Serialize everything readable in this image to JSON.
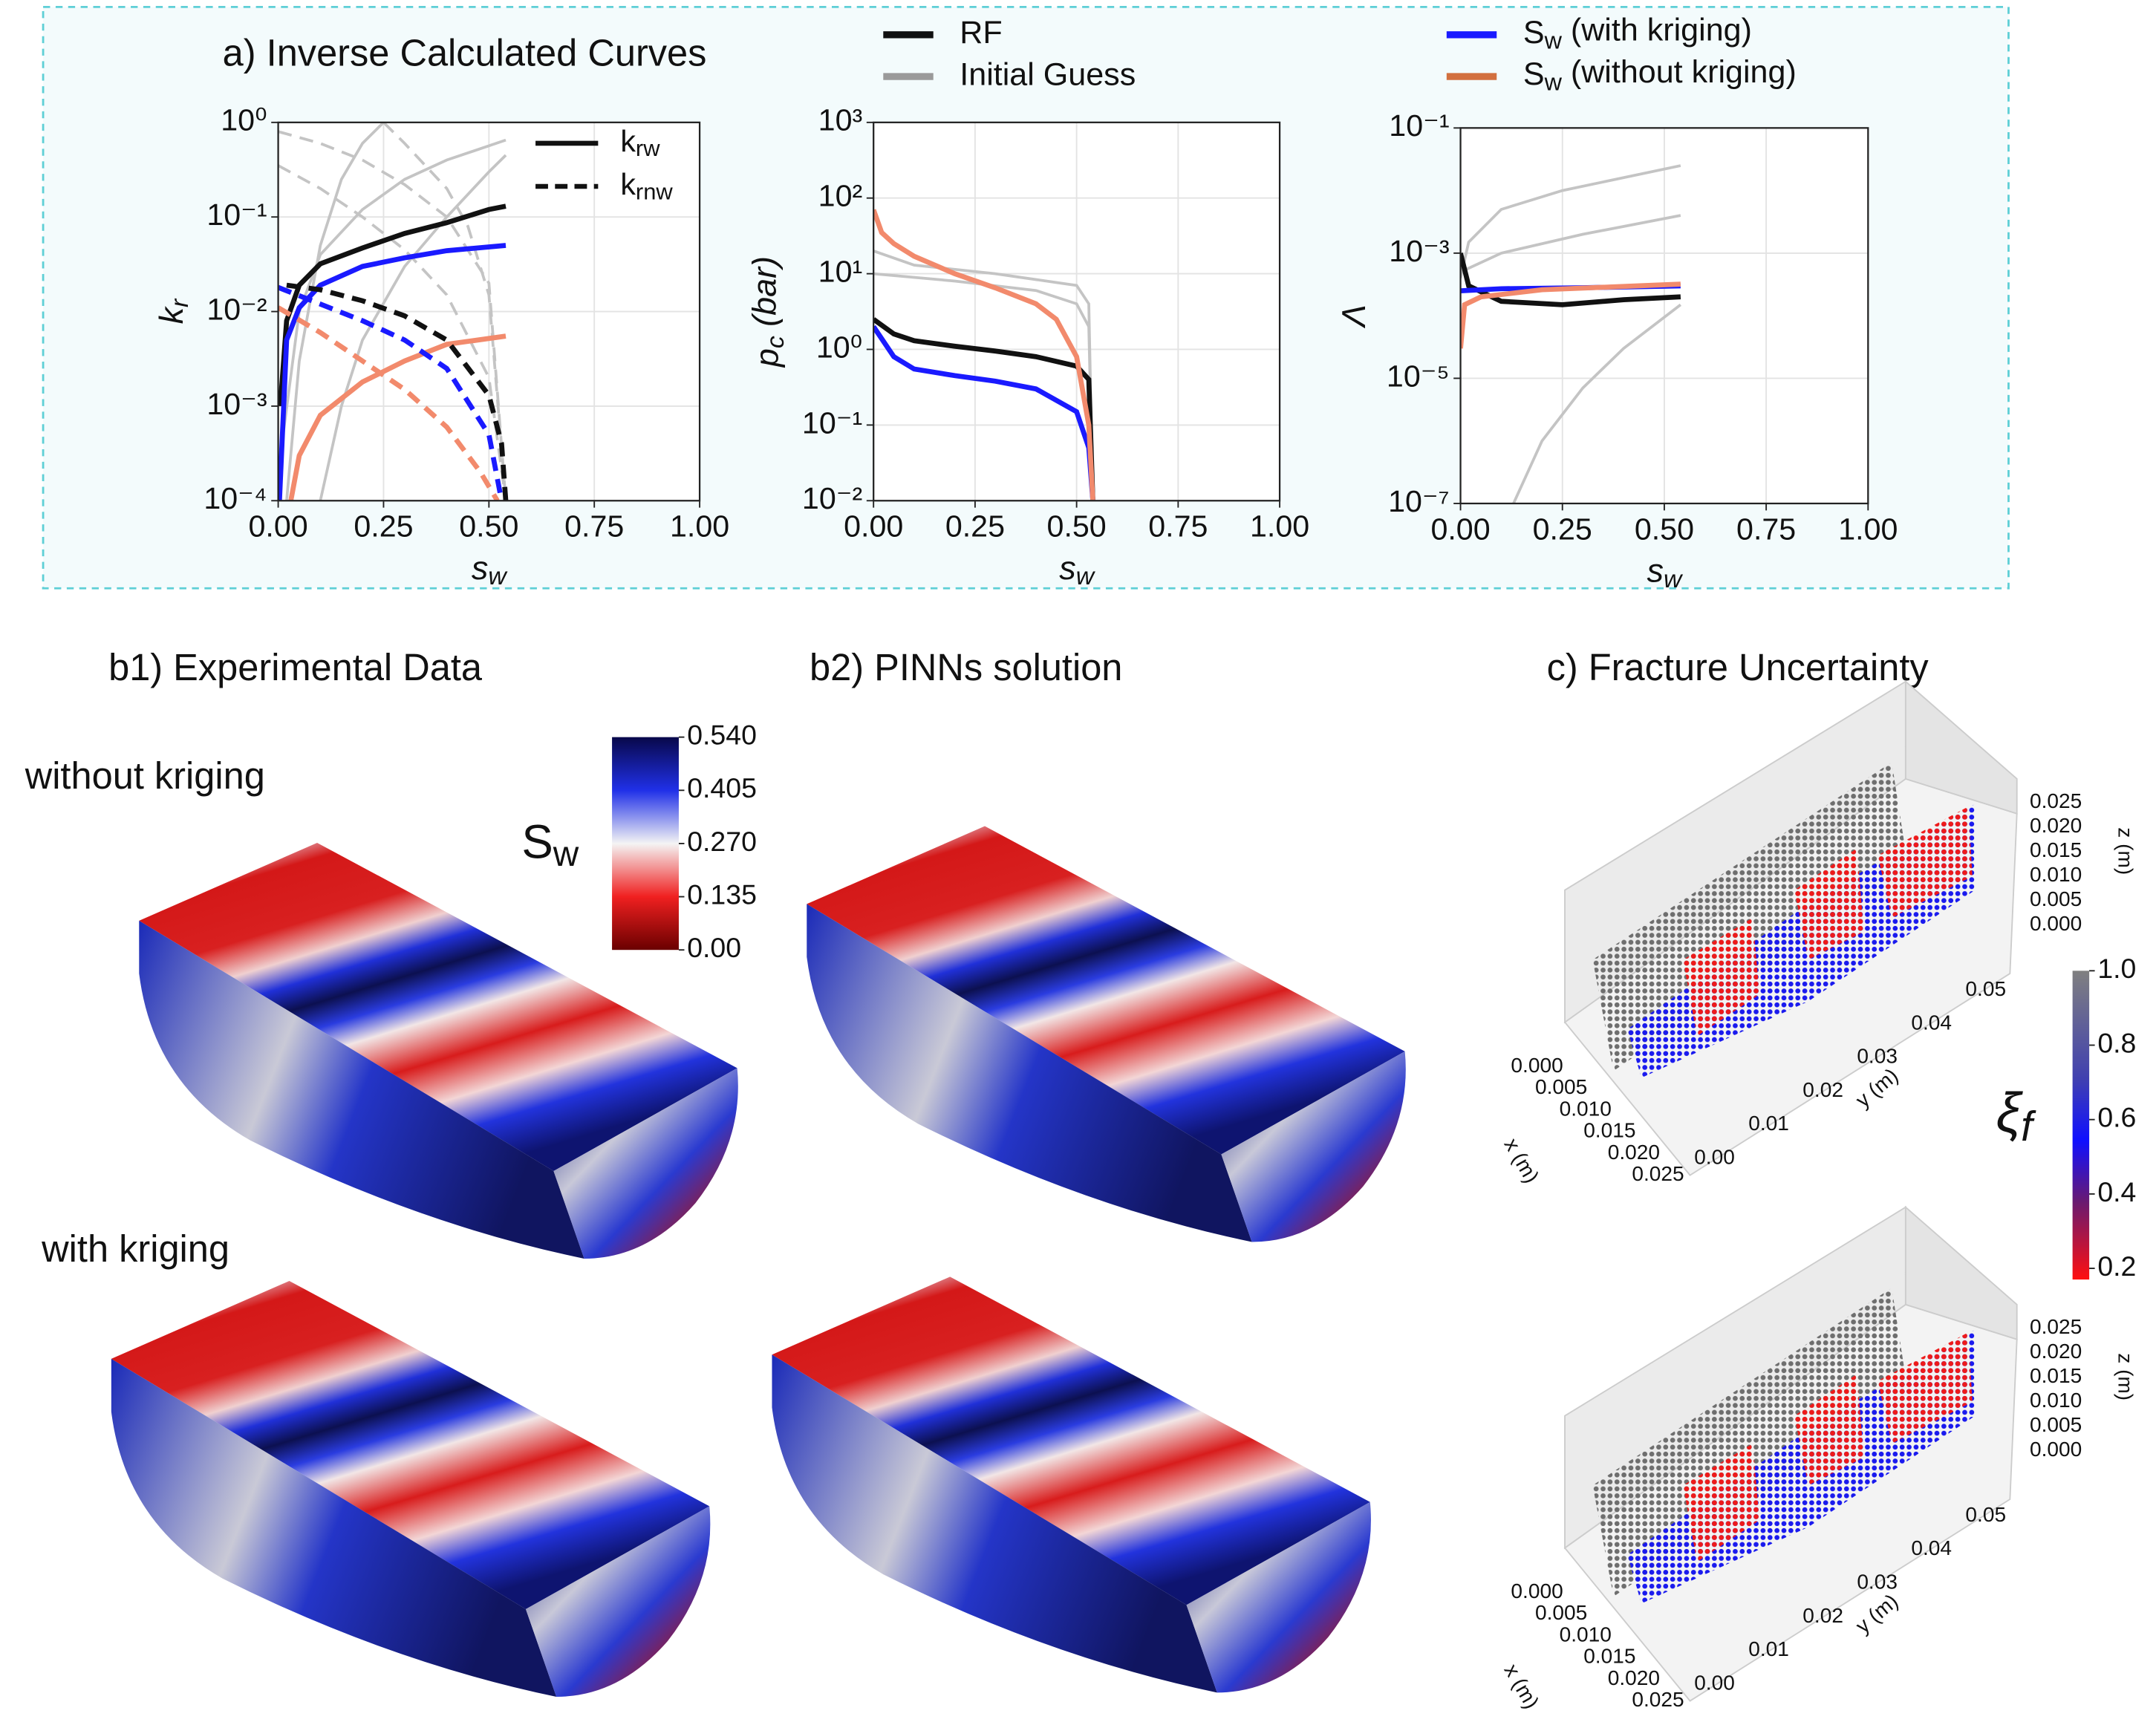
{
  "titles": {
    "a": "a) Inverse Calculated Curves",
    "b1": "b1) Experimental Data",
    "b2": "b2) PINNs solution",
    "c": "c) Fracture Uncertainty"
  },
  "row_labels": [
    "without kriging",
    "with kriging"
  ],
  "legend": [
    {
      "name": "RF",
      "color": "#111111"
    },
    {
      "name": "Initial Guess",
      "color": "#9a9a9a"
    },
    {
      "name": {
        "base": "S",
        "sub": "w",
        "rest": " (with kriging)"
      },
      "color": "#1a1aff"
    },
    {
      "name": {
        "base": "S",
        "sub": "w",
        "rest": " (without kriging)"
      },
      "color": "#d2703f"
    }
  ],
  "chart_data": [
    {
      "type": "line",
      "log_y": true,
      "grid": true,
      "xlabel": {
        "base": "s",
        "sub": "w"
      },
      "ylabel": {
        "base": "k",
        "sub": "r"
      },
      "xlim": [
        0,
        1
      ],
      "ylim": [
        0.0001,
        1
      ],
      "xticks": [
        {
          "value": 0,
          "label": "0.00"
        },
        0.25,
        {
          "value": 0.5,
          "label": "0.50"
        },
        0.75,
        {
          "value": 1,
          "label": "1.00"
        }
      ],
      "yticks": [
        {
          "value": 0.0001,
          "label": "10⁻⁴"
        },
        {
          "value": 0.001,
          "label": "10⁻³"
        },
        {
          "value": 0.01,
          "label": "10⁻²"
        },
        {
          "value": 0.1,
          "label": "10⁻¹"
        },
        {
          "value": 1,
          "label": "10⁰"
        }
      ],
      "line_styles": [
        {
          "base": "k",
          "sub": "rw",
          "dash": false
        },
        {
          "base": "k",
          "sub": "rnw",
          "dash": true
        }
      ],
      "series": [
        {
          "color": "#c4c4c4",
          "dash": false,
          "x": [
            0.02,
            0.05,
            0.1,
            0.15,
            0.2,
            0.25
          ],
          "values": [
            0.0001,
            0.003,
            0.05,
            0.25,
            0.6,
            1
          ]
        },
        {
          "color": "#c4c4c4",
          "dash": false,
          "x": [
            0.1,
            0.15,
            0.2,
            0.3,
            0.4,
            0.5,
            0.54
          ],
          "values": [
            0.0001,
            0.001,
            0.005,
            0.03,
            0.1,
            0.3,
            0.45
          ]
        },
        {
          "color": "#c4c4c4",
          "dash": false,
          "x": [
            0,
            0.05,
            0.1,
            0.2,
            0.3,
            0.4,
            0.54
          ],
          "values": [
            0.0002,
            0.01,
            0.04,
            0.12,
            0.25,
            0.4,
            0.65
          ]
        },
        {
          "color": "#c4c4c4",
          "dash": true,
          "x": [
            0,
            0.1,
            0.2,
            0.3,
            0.4,
            0.5,
            0.54
          ],
          "values": [
            0.8,
            0.6,
            0.4,
            0.22,
            0.1,
            0.02,
            0.0001
          ]
        },
        {
          "color": "#c4c4c4",
          "dash": true,
          "x": [
            0,
            0.1,
            0.2,
            0.3,
            0.4,
            0.5,
            0.54
          ],
          "values": [
            0.35,
            0.2,
            0.1,
            0.045,
            0.015,
            0.002,
            0.0001
          ]
        },
        {
          "color": "#c4c4c4",
          "dash": true,
          "x": [
            0.25,
            0.3,
            0.4,
            0.45,
            0.5,
            0.54
          ],
          "values": [
            1,
            0.6,
            0.2,
            0.08,
            0.015,
            0.0001
          ]
        },
        {
          "color": "#111111",
          "dash": false,
          "x": [
            0.005,
            0.02,
            0.05,
            0.1,
            0.2,
            0.3,
            0.4,
            0.5,
            0.54
          ],
          "values": [
            0.001,
            0.008,
            0.019,
            0.032,
            0.047,
            0.067,
            0.087,
            0.12,
            0.13
          ]
        },
        {
          "color": "#1a1aff",
          "dash": false,
          "x": [
            0.003,
            0.02,
            0.05,
            0.1,
            0.2,
            0.3,
            0.4,
            0.54
          ],
          "values": [
            0.0001,
            0.005,
            0.011,
            0.019,
            0.03,
            0.037,
            0.044,
            0.05
          ]
        },
        {
          "color": "#f28a6c",
          "dash": false,
          "x": [
            0.03,
            0.05,
            0.1,
            0.2,
            0.3,
            0.4,
            0.54
          ],
          "values": [
            0.0001,
            0.0003,
            0.0008,
            0.0018,
            0.003,
            0.0045,
            0.0055
          ]
        },
        {
          "color": "#111111",
          "dash": true,
          "x": [
            0.02,
            0.1,
            0.2,
            0.3,
            0.4,
            0.5,
            0.53,
            0.54
          ],
          "values": [
            0.019,
            0.017,
            0.013,
            0.009,
            0.005,
            0.0013,
            0.0004,
            0.0001
          ]
        },
        {
          "color": "#1a1aff",
          "dash": true,
          "x": [
            0,
            0.1,
            0.2,
            0.3,
            0.4,
            0.5,
            0.53
          ],
          "values": [
            0.018,
            0.012,
            0.008,
            0.005,
            0.0025,
            0.0005,
            0.0001
          ]
        },
        {
          "color": "#f28a6c",
          "dash": true,
          "x": [
            0,
            0.1,
            0.2,
            0.3,
            0.4,
            0.48,
            0.52
          ],
          "values": [
            0.011,
            0.006,
            0.003,
            0.0015,
            0.0006,
            0.0002,
            0.0001
          ]
        }
      ]
    },
    {
      "type": "line",
      "log_y": true,
      "grid": true,
      "xlabel": {
        "base": "s",
        "sub": "w"
      },
      "ylabel": {
        "base": "p",
        "sub": "c",
        "rest": " (bar)"
      },
      "xlim": [
        0,
        1
      ],
      "ylim": [
        0.01,
        1000
      ],
      "xticks": [
        {
          "value": 0,
          "label": "0.00"
        },
        0.25,
        {
          "value": 0.5,
          "label": "0.50"
        },
        0.75,
        {
          "value": 1,
          "label": "1.00"
        }
      ],
      "yticks": [
        {
          "value": 0.01,
          "label": "10⁻²"
        },
        {
          "value": 0.1,
          "label": "10⁻¹"
        },
        {
          "value": 1,
          "label": "10⁰"
        },
        {
          "value": 10,
          "label": "10¹"
        },
        {
          "value": 100,
          "label": "10²"
        },
        {
          "value": 1000,
          "label": "10³"
        }
      ],
      "series": [
        {
          "color": "#c4c4c4",
          "dash": false,
          "x": [
            0,
            0.1,
            0.3,
            0.5,
            0.53,
            0.54
          ],
          "values": [
            20,
            13,
            10,
            7,
            4,
            0.01
          ]
        },
        {
          "color": "#c4c4c4",
          "dash": false,
          "x": [
            0,
            0.2,
            0.4,
            0.5,
            0.53,
            0.54
          ],
          "values": [
            10,
            8,
            6,
            4,
            2,
            0.01
          ]
        },
        {
          "color": "#111111",
          "dash": false,
          "x": [
            0,
            0.05,
            0.1,
            0.2,
            0.3,
            0.4,
            0.5,
            0.53,
            0.54
          ],
          "values": [
            2.5,
            1.6,
            1.3,
            1.1,
            0.95,
            0.8,
            0.6,
            0.4,
            0.01
          ]
        },
        {
          "color": "#1a1aff",
          "dash": false,
          "x": [
            0,
            0.05,
            0.1,
            0.2,
            0.3,
            0.4,
            0.5,
            0.53,
            0.54
          ],
          "values": [
            2,
            0.8,
            0.55,
            0.45,
            0.38,
            0.3,
            0.15,
            0.05,
            0.01
          ]
        },
        {
          "color": "#f28a6c",
          "dash": false,
          "x": [
            0,
            0.02,
            0.05,
            0.1,
            0.2,
            0.3,
            0.4,
            0.45,
            0.5,
            0.53,
            0.54
          ],
          "values": [
            70,
            35,
            25,
            17,
            10,
            6.5,
            4,
            2.5,
            0.8,
            0.1,
            0.01
          ]
        }
      ]
    },
    {
      "type": "line",
      "log_y": true,
      "grid": true,
      "xlabel": {
        "base": "s",
        "sub": "w"
      },
      "ylabel": "Λ",
      "xlim": [
        0,
        1
      ],
      "ylim": [
        1e-07,
        0.1
      ],
      "xticks": [
        {
          "value": 0,
          "label": "0.00"
        },
        0.25,
        {
          "value": 0.5,
          "label": "0.50"
        },
        0.75,
        {
          "value": 1,
          "label": "1.00"
        }
      ],
      "yticks": [
        {
          "value": 1e-07,
          "label": "10⁻⁷"
        },
        {
          "value": 1e-05,
          "label": "10⁻⁵"
        },
        {
          "value": 0.001,
          "label": "10⁻³"
        },
        {
          "value": 0.1,
          "label": "10⁻¹"
        }
      ],
      "series": [
        {
          "color": "#c4c4c4",
          "dash": false,
          "x": [
            0,
            0.02,
            0.1,
            0.25,
            0.54
          ],
          "values": [
            0.0004,
            0.0015,
            0.005,
            0.01,
            0.025
          ]
        },
        {
          "color": "#c4c4c4",
          "dash": false,
          "x": [
            0,
            0.1,
            0.3,
            0.54
          ],
          "values": [
            0.0005,
            0.001,
            0.002,
            0.004
          ]
        },
        {
          "color": "#c4c4c4",
          "dash": false,
          "x": [
            0.13,
            0.2,
            0.3,
            0.4,
            0.54
          ],
          "values": [
            1e-07,
            1e-06,
            7e-06,
            3e-05,
            0.00015
          ]
        },
        {
          "color": "#111111",
          "dash": false,
          "x": [
            0,
            0.02,
            0.1,
            0.25,
            0.4,
            0.54
          ],
          "values": [
            0.001,
            0.0003,
            0.00017,
            0.00015,
            0.00018,
            0.0002
          ]
        },
        {
          "color": "#1a1aff",
          "dash": false,
          "x": [
            0,
            0.1,
            0.3,
            0.54
          ],
          "values": [
            0.00025,
            0.00027,
            0.00028,
            0.0003
          ]
        },
        {
          "color": "#f28a6c",
          "dash": false,
          "x": [
            0,
            0.01,
            0.05,
            0.2,
            0.54
          ],
          "values": [
            3e-05,
            0.00015,
            0.0002,
            0.00026,
            0.00032
          ]
        }
      ]
    }
  ],
  "sw_colorbar": {
    "label": {
      "base": "S",
      "sub": "w"
    },
    "lim": [
      0,
      0.54
    ],
    "ticks": [
      {
        "value": 0.54,
        "label": "0.540"
      },
      0.405,
      {
        "value": 0.27,
        "label": "0.270"
      },
      0.135,
      {
        "value": 0,
        "label": "0.00"
      }
    ]
  },
  "xi_colorbar": {
    "label": {
      "base": "ξ",
      "sub": "f"
    },
    "lim": [
      0.17,
      1
    ],
    "ticks": [
      {
        "value": 1,
        "label": "1.0"
      },
      0.8,
      0.6,
      0.4,
      0.2
    ]
  },
  "scatter_axes": {
    "x": {
      "label": "x (m)",
      "lim": [
        0,
        0.025
      ],
      "ticks": [
        {
          "value": 0,
          "label": "0.000"
        },
        0.005,
        {
          "value": 0.01,
          "label": "0.010"
        },
        0.015,
        {
          "value": 0.02,
          "label": "0.020"
        },
        0.025
      ]
    },
    "y": {
      "label": "y (m)",
      "lim": [
        0,
        0.05
      ],
      "ticks": [
        {
          "value": 0,
          "label": "0.00"
        },
        0.01,
        0.02,
        0.03,
        0.04,
        0.05
      ]
    },
    "z": {
      "label": "z (m)",
      "lim": [
        0,
        0.025
      ],
      "ticks": [
        {
          "value": 0,
          "label": "0.000"
        },
        0.005,
        {
          "value": 0.01,
          "label": "0.010"
        },
        0.015,
        {
          "value": 0.02,
          "label": "0.020"
        },
        0.025
      ]
    }
  }
}
